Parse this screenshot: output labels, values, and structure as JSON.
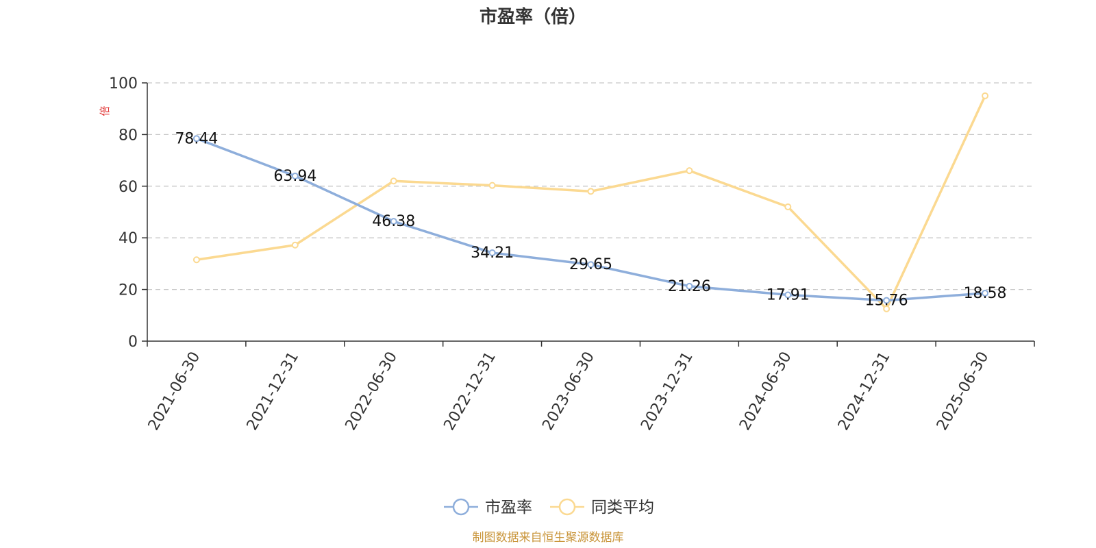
{
  "colors": {
    "series_pe": "#8eaedb",
    "series_avg": "#fbd991",
    "unit": "#e03030",
    "source": "#c9953a",
    "grid": "#c8c8c8",
    "axis": "#333333"
  },
  "chart_data": {
    "type": "line",
    "title": "市盈率（倍）",
    "y_unit": "倍",
    "ylim": [
      0,
      100
    ],
    "y_ticks": [
      0,
      20,
      40,
      60,
      80,
      100
    ],
    "grid": true,
    "grid_style": "dashed horizontal",
    "legend_position": "bottom-center",
    "x": [
      "2021-06-30",
      "2021-12-31",
      "2022-06-30",
      "2022-12-31",
      "2023-06-30",
      "2023-12-31",
      "2024-06-30",
      "2024-12-31",
      "2025-06-30"
    ],
    "series": [
      {
        "name": "市盈率",
        "values": [
          78.44,
          63.94,
          46.38,
          34.21,
          29.65,
          21.26,
          17.91,
          15.76,
          18.58
        ],
        "data_labels": [
          "78.44",
          "63.94",
          "46.38",
          "34.21",
          "29.65",
          "21.26",
          "17.91",
          "15.76",
          "18.58"
        ],
        "color": "#8eaedb"
      },
      {
        "name": "同类平均",
        "values": [
          31.5,
          37.2,
          62.0,
          60.3,
          58.0,
          66.0,
          52.0,
          12.5,
          95.0
        ],
        "color": "#fbd991"
      }
    ],
    "source_note": "制图数据来自恒生聚源数据库"
  }
}
